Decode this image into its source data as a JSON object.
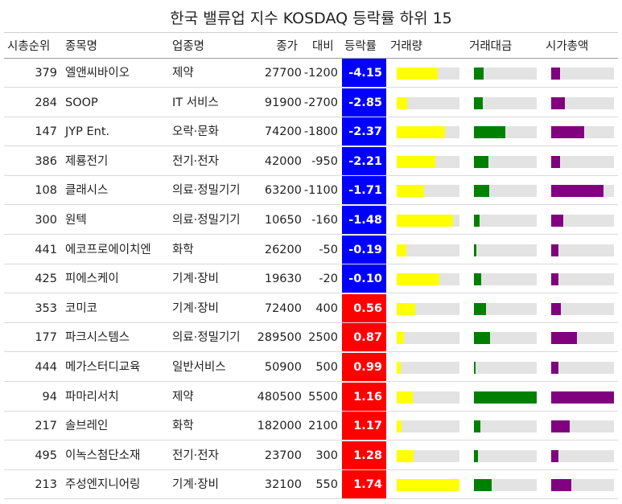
{
  "title": "한국 밸류업 지수 KOSDAQ 등락률 하위 15",
  "columns": [
    "시총순위",
    "종목명",
    "업종명",
    "종가",
    "대비",
    "등락률",
    "거래량",
    "거래대금",
    "시가총액"
  ],
  "colors": {
    "negative": "#0000ff",
    "positive": "#ff0000",
    "volume_bar": "#ffff00",
    "value_bar": "#008000",
    "mktcap_bar": "#800080",
    "track": "#e3e3e3"
  },
  "chart_data": {
    "type": "table",
    "rows": [
      {
        "rank": 379,
        "name": "엘앤씨바이오",
        "sector": "제약",
        "close": 27700,
        "change": -1200,
        "pct": "-4.15",
        "volume": 0.66,
        "value": 0.16,
        "mktcap": 0.14
      },
      {
        "rank": 284,
        "name": "SOOP",
        "sector": "IT 서비스",
        "close": 91900,
        "change": -2700,
        "pct": "-2.85",
        "volume": 0.17,
        "value": 0.14,
        "mktcap": 0.22
      },
      {
        "rank": 147,
        "name": "JYP Ent.",
        "sector": "오락·문화",
        "close": 74200,
        "change": -1800,
        "pct": "-2.37",
        "volume": 0.77,
        "value": 0.5,
        "mktcap": 0.53
      },
      {
        "rank": 386,
        "name": "제룡전기",
        "sector": "전기·전자",
        "close": 42000,
        "change": -950,
        "pct": "-2.21",
        "volume": 0.62,
        "value": 0.23,
        "mktcap": 0.14
      },
      {
        "rank": 108,
        "name": "클래시스",
        "sector": "의료·정밀기기",
        "close": 63200,
        "change": -1100,
        "pct": "-1.71",
        "volume": 0.44,
        "value": 0.24,
        "mktcap": 0.83
      },
      {
        "rank": 300,
        "name": "원텍",
        "sector": "의료·정밀기기",
        "close": 10650,
        "change": -160,
        "pct": "-1.48",
        "volume": 0.9,
        "value": 0.09,
        "mktcap": 0.19
      },
      {
        "rank": 441,
        "name": "에코프로에이치엔",
        "sector": "화학",
        "close": 26200,
        "change": -50,
        "pct": "-0.19",
        "volume": 0.16,
        "value": 0.04,
        "mktcap": 0.11
      },
      {
        "rank": 425,
        "name": "피에스케이",
        "sector": "기계·장비",
        "close": 19630,
        "change": -20,
        "pct": "-0.10",
        "volume": 0.68,
        "value": 0.12,
        "mktcap": 0.12
      },
      {
        "rank": 353,
        "name": "코미코",
        "sector": "기계·장비",
        "close": 72400,
        "change": 400,
        "pct": "0.56",
        "volume": 0.29,
        "value": 0.19,
        "mktcap": 0.15
      },
      {
        "rank": 177,
        "name": "파크시스템스",
        "sector": "의료·정밀기기",
        "close": 289500,
        "change": 2500,
        "pct": "0.87",
        "volume": 0.11,
        "value": 0.26,
        "mktcap": 0.41
      },
      {
        "rank": 444,
        "name": "메가스터디교육",
        "sector": "일반서비스",
        "close": 50900,
        "change": 500,
        "pct": "0.99",
        "volume": 0.07,
        "value": 0.03,
        "mktcap": 0.12
      },
      {
        "rank": 94,
        "name": "파마리서치",
        "sector": "제약",
        "close": 480500,
        "change": 5500,
        "pct": "1.16",
        "volume": 0.25,
        "value": 1.0,
        "mktcap": 1.0
      },
      {
        "rank": 217,
        "name": "솔브레인",
        "sector": "화학",
        "close": 182000,
        "change": 2100,
        "pct": "1.17",
        "volume": 0.08,
        "value": 0.1,
        "mktcap": 0.29
      },
      {
        "rank": 495,
        "name": "이녹스첨단소재",
        "sector": "전기·전자",
        "close": 23700,
        "change": 300,
        "pct": "1.28",
        "volume": 0.27,
        "value": 0.07,
        "mktcap": 0.11
      },
      {
        "rank": 213,
        "name": "주성엔지니어링",
        "sector": "기계·장비",
        "close": 32100,
        "change": 550,
        "pct": "1.74",
        "volume": 1.0,
        "value": 0.28,
        "mktcap": 0.32
      }
    ]
  }
}
